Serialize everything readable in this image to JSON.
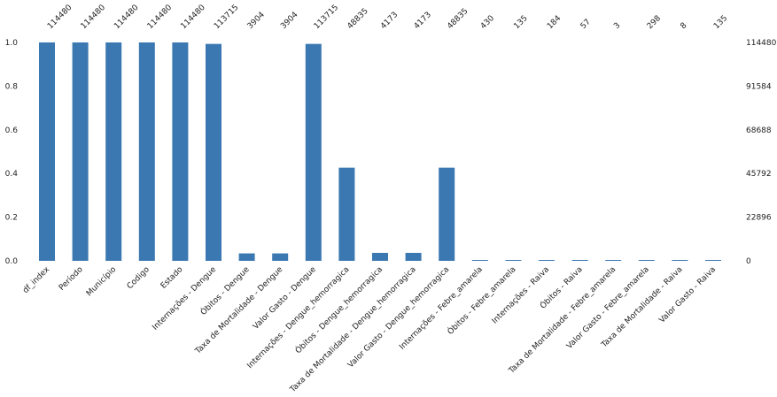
{
  "chart_data": {
    "type": "bar",
    "categories": [
      "df_index",
      "Período",
      "Município",
      "Codigo",
      "Estado",
      "Internações - Dengue",
      "Óbitos - Dengue",
      "Taxa de Mortalidade - Dengue",
      "Valor Gasto - Dengue",
      "Internações - Dengue_hemorragica",
      "Óbitos - Dengue_hemorragica",
      "Taxa de Mortalidade - Dengue_hemorragica",
      "Valor Gasto - Dengue_hemorragica",
      "Internações - Febre_amarela",
      "Óbitos - Febre_amarela",
      "Internações - Raiva",
      "Óbitos - Raiva",
      "Taxa de Mortalidade - Febre_amarela",
      "Valor Gasto - Febre_amarela",
      "Taxa de Mortalidade - Raiva",
      "Valor Gasto - Raiva"
    ],
    "values": [
      114480,
      114480,
      114480,
      114480,
      114480,
      113715,
      3904,
      3904,
      113715,
      48835,
      4173,
      4173,
      48835,
      430,
      135,
      184,
      57,
      3,
      298,
      8,
      135
    ],
    "count_labels": [
      "114480",
      "114480",
      "114480",
      "114480",
      "114480",
      "113715",
      "3904",
      "3904",
      "113715",
      "48835",
      "4173",
      "4173",
      "48835",
      "430",
      "135",
      "184",
      "57",
      "3",
      "298",
      "8",
      "135"
    ],
    "total": 114480,
    "ylim": [
      0,
      1
    ],
    "left_ticks": [
      "0.0",
      "0.2",
      "0.4",
      "0.6",
      "0.8",
      "1.0"
    ],
    "right_ticks": [
      "0",
      "22896",
      "45792",
      "68688",
      "91584",
      "114480"
    ],
    "title": "",
    "xlabel": "",
    "ylabel": "",
    "grid": false,
    "bar_color": "#3b78b1"
  }
}
